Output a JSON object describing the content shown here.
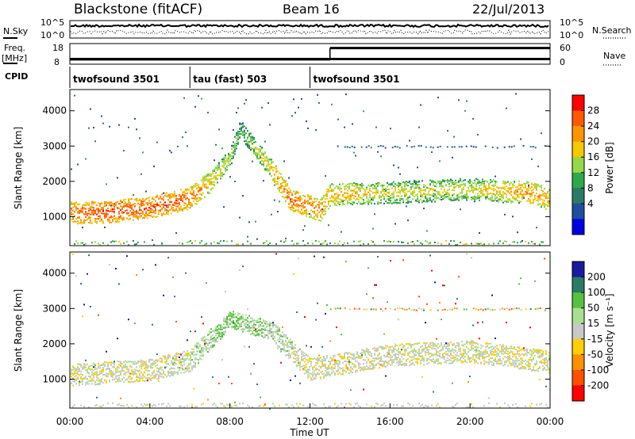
{
  "header": {
    "station": "Blackstone (fitACF)",
    "beam": "Beam 16",
    "date": "22/Jul/2013"
  },
  "noise_panel": {
    "left_label": "N.Sky",
    "right_label": "N.Search",
    "left_ticks": [
      "10^5",
      "10^0"
    ],
    "right_ticks": [
      "10^5",
      "10^0"
    ]
  },
  "freq_panel": {
    "left_label_1": "Freq.",
    "left_label_2": "[MHz]",
    "right_label": "Nave",
    "left_ticks": [
      "18",
      "8"
    ],
    "right_ticks": [
      "60",
      "0"
    ],
    "freq_level": 10.5,
    "nave_segments": [
      {
        "from_h": 0,
        "to_h": 13,
        "nave": 14
      },
      {
        "from_h": 13,
        "to_h": 24,
        "nave": 47
      }
    ]
  },
  "cpid_panel": {
    "label": "CPID",
    "segments": [
      {
        "label": "twofsound 3501",
        "from_h": 0,
        "to_h": 6
      },
      {
        "label": "tau (fast) 503",
        "from_h": 6,
        "to_h": 12
      },
      {
        "label": "twofsound 3501",
        "from_h": 12,
        "to_h": 24
      }
    ]
  },
  "power_panel": {
    "ylabel": "Slant Range [km]",
    "yticks": [
      "4000",
      "3000",
      "2000",
      "1000"
    ],
    "colorbar_label": "Power [dB]",
    "colorbar_ticks": [
      "28",
      "24",
      "20",
      "16",
      "12",
      "8",
      "4"
    ],
    "colorbar_colors": [
      "#ff0000",
      "#ff5a00",
      "#ff9600",
      "#f5c800",
      "#98d848",
      "#2fa84c",
      "#2a7a66",
      "#1e4ea0",
      "#0000e0"
    ]
  },
  "velocity_panel": {
    "ylabel": "Slant Range [km]",
    "yticks": [
      "4000",
      "3000",
      "2000",
      "1000"
    ],
    "colorbar_label": "Velocity [m s⁻¹]",
    "colorbar_ticks": [
      "200",
      "100",
      "50",
      "15",
      "-15",
      "-50",
      "-100",
      "-200"
    ],
    "colorbar_colors": [
      "#1a1a9c",
      "#2a7a66",
      "#58c040",
      "#a8e090",
      "#c8c8c8",
      "#ffd000",
      "#ff9000",
      "#ff5000",
      "#ff0000"
    ]
  },
  "x_axis": {
    "label": "Time UT",
    "ticks": [
      "00:00",
      "04:00",
      "08:00",
      "12:00",
      "16:00",
      "20:00",
      "00:00"
    ]
  },
  "chart_data": {
    "type": "heatmap",
    "x_unit": "hours UT",
    "y_unit": "km",
    "xlim": [
      0,
      24
    ],
    "ylim": [
      180,
      4600
    ],
    "power_ridge": [
      {
        "t": 0.0,
        "range": 1130,
        "power": 26
      },
      {
        "t": 2.0,
        "range": 1150,
        "power": 28
      },
      {
        "t": 4.0,
        "range": 1280,
        "power": 27
      },
      {
        "t": 6.0,
        "range": 1550,
        "power": 26
      },
      {
        "t": 7.0,
        "range": 2000,
        "power": 20
      },
      {
        "t": 8.0,
        "range": 2700,
        "power": 16
      },
      {
        "t": 8.5,
        "range": 3500,
        "power": 12
      },
      {
        "t": 10.0,
        "range": 2400,
        "power": 20
      },
      {
        "t": 11.0,
        "range": 1500,
        "power": 26
      },
      {
        "t": 12.5,
        "range": 1200,
        "power": 24
      },
      {
        "t": 13.0,
        "range": 1650,
        "power": 22
      },
      {
        "t": 16.0,
        "range": 1700,
        "power": 18
      },
      {
        "t": 20.0,
        "range": 1800,
        "power": 18
      },
      {
        "t": 23.0,
        "range": 1700,
        "power": 24
      },
      {
        "t": 24.0,
        "range": 1500,
        "power": 22
      }
    ],
    "velocity_ridge": [
      {
        "t": 0.0,
        "range": 1130,
        "velocity": 0
      },
      {
        "t": 4.0,
        "range": 1280,
        "velocity": 0
      },
      {
        "t": 6.0,
        "range": 1550,
        "velocity": 10
      },
      {
        "t": 8.0,
        "range": 2700,
        "velocity": 40
      },
      {
        "t": 10.0,
        "range": 2400,
        "velocity": 20
      },
      {
        "t": 12.0,
        "range": 1300,
        "velocity": 0
      },
      {
        "t": 16.0,
        "range": 1700,
        "velocity": 0
      },
      {
        "t": 20.0,
        "range": 1800,
        "velocity": 0
      },
      {
        "t": 24.0,
        "range": 1500,
        "velocity": 0
      }
    ]
  }
}
